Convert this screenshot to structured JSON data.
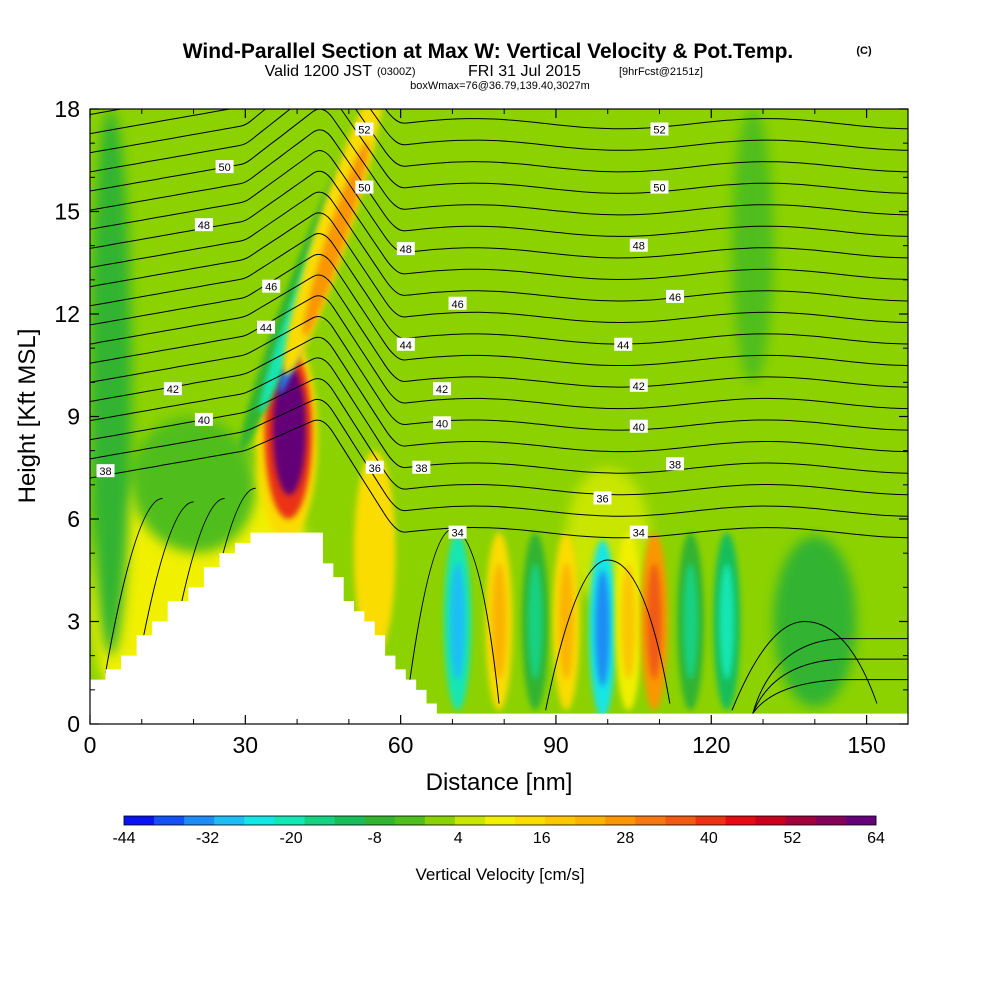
{
  "title": {
    "main": "Wind-Parallel Section at Max W: Vertical Velocity & Pot.Temp.",
    "copyright": "(C)",
    "valid_prefix": "Valid 1200 JST",
    "valid_utc": "(0300Z)",
    "valid_date": "FRI 31 Jul 2015",
    "forecast": "[9hrFcst@2151z]",
    "box_info": "boxWmax=76@36.79,139.40,3027m"
  },
  "colorbar": {
    "label": "Vertical Velocity [cm/s]",
    "tick_labels": [
      "-44",
      "-32",
      "-20",
      "-8",
      "4",
      "16",
      "28",
      "40",
      "52",
      "64"
    ],
    "colors": [
      "#0a14f0",
      "#1450f5",
      "#1e8cf5",
      "#1ebef5",
      "#14e6e6",
      "#14e6b4",
      "#14d282",
      "#19be5a",
      "#32b432",
      "#50be1e",
      "#8cd200",
      "#c8e600",
      "#f0f000",
      "#fadc00",
      "#fac800",
      "#fab400",
      "#fa9600",
      "#f57814",
      "#f05a14",
      "#eb3214",
      "#e60a14",
      "#c8001e",
      "#a0003c",
      "#82005a",
      "#640078"
    ]
  },
  "chart_data": {
    "type": "contour",
    "title": "Wind-Parallel Section at Max W: Vertical Velocity & Pot.Temp.",
    "xlabel": "Distance [nm]",
    "ylabel": "Height [Kft MSL]",
    "xlim": [
      0,
      158
    ],
    "ylim": [
      0,
      18
    ],
    "x_ticks": [
      0,
      30,
      60,
      90,
      120,
      150
    ],
    "y_ticks": [
      0,
      3,
      6,
      9,
      12,
      15,
      18
    ],
    "fill_variable": "Vertical Velocity [cm/s]",
    "fill_range": [
      -44,
      64
    ],
    "max_vertical_velocity": 76,
    "contour_variable": "Potential Temperature",
    "contour_levels": [
      34,
      35,
      36,
      37,
      38,
      39,
      40,
      41,
      42,
      43,
      44,
      45,
      46,
      47,
      48,
      49,
      50,
      51,
      52,
      53
    ],
    "contour_labels": [
      {
        "text": "52",
        "x": 53,
        "y": 17.4
      },
      {
        "text": "52",
        "x": 110,
        "y": 17.4
      },
      {
        "text": "50",
        "x": 26,
        "y": 16.3
      },
      {
        "text": "50",
        "x": 53,
        "y": 15.7
      },
      {
        "text": "50",
        "x": 110,
        "y": 15.7
      },
      {
        "text": "48",
        "x": 22,
        "y": 14.6
      },
      {
        "text": "48",
        "x": 61,
        "y": 13.9
      },
      {
        "text": "48",
        "x": 106,
        "y": 14.0
      },
      {
        "text": "46",
        "x": 35,
        "y": 12.8
      },
      {
        "text": "46",
        "x": 71,
        "y": 12.3
      },
      {
        "text": "46",
        "x": 113,
        "y": 12.5
      },
      {
        "text": "44",
        "x": 34,
        "y": 11.6
      },
      {
        "text": "44",
        "x": 61,
        "y": 11.1
      },
      {
        "text": "44",
        "x": 103,
        "y": 11.1
      },
      {
        "text": "42",
        "x": 16,
        "y": 9.8
      },
      {
        "text": "42",
        "x": 68,
        "y": 9.8
      },
      {
        "text": "42",
        "x": 106,
        "y": 9.9
      },
      {
        "text": "40",
        "x": 22,
        "y": 8.9
      },
      {
        "text": "40",
        "x": 68,
        "y": 8.8
      },
      {
        "text": "40",
        "x": 106,
        "y": 8.7
      },
      {
        "text": "38",
        "x": 3,
        "y": 7.4
      },
      {
        "text": "38",
        "x": 64,
        "y": 7.5
      },
      {
        "text": "38",
        "x": 113,
        "y": 7.6
      },
      {
        "text": "36",
        "x": 55,
        "y": 7.5
      },
      {
        "text": "36",
        "x": 99,
        "y": 6.6
      },
      {
        "text": "34",
        "x": 71,
        "y": 5.6
      },
      {
        "text": "34",
        "x": 106,
        "y": 5.6
      }
    ],
    "terrain_peak": {
      "x": 41,
      "height_kft": 5.6
    }
  }
}
